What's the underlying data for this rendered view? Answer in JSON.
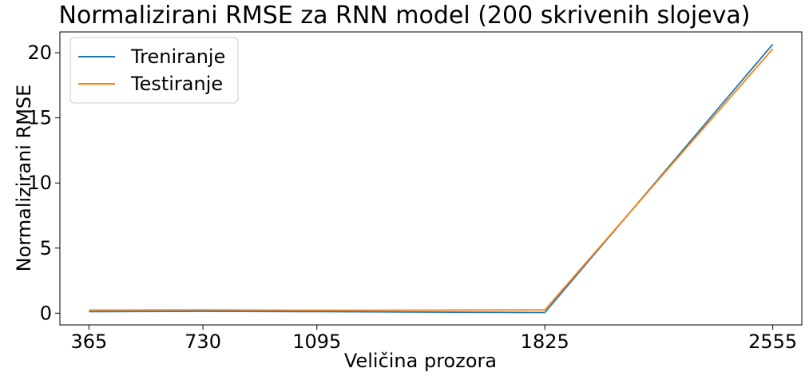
{
  "chart_data": {
    "type": "line",
    "title": "Normalizirani RMSE za RNN model (200 skrivenih slojeva)",
    "xlabel": "Veličina prozora",
    "ylabel": "Normalizirani RMSE",
    "x": [
      365,
      730,
      1095,
      1825,
      2555
    ],
    "x_ticks": [
      "365",
      "730",
      "1095",
      "1825",
      "2555"
    ],
    "y_ticks": [
      "0",
      "5",
      "10",
      "15",
      "20"
    ],
    "xlim": [
      272,
      2648
    ],
    "ylim": [
      -0.9,
      21.6
    ],
    "grid": false,
    "legend_position": "top-left",
    "series": [
      {
        "name": "Treniranje",
        "color": "#1f77b4",
        "values": [
          0.12,
          0.14,
          0.12,
          0.05,
          20.65
        ]
      },
      {
        "name": "Testiranje",
        "color": "#ff7f0e",
        "values": [
          0.24,
          0.26,
          0.22,
          0.25,
          20.3
        ]
      }
    ]
  }
}
